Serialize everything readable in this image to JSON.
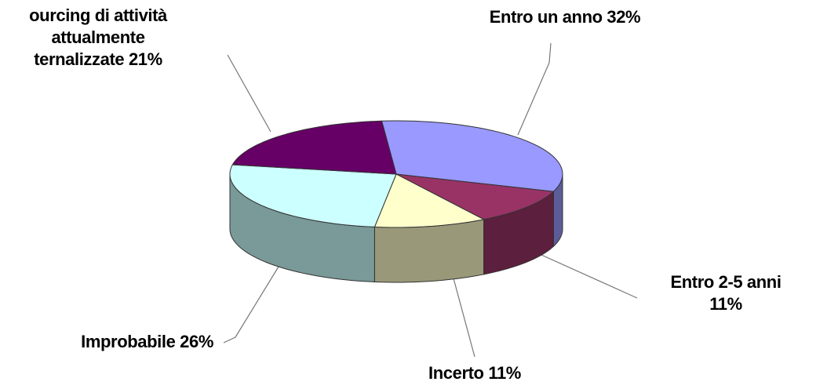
{
  "chart_data": {
    "type": "pie3d",
    "categories": [
      "Entro un anno",
      "Entro 2-5 anni",
      "Incerto",
      "Improbabile",
      "ourcing di attività\nattualmente\nternalizzate"
    ],
    "values": [
      32,
      11,
      11,
      26,
      21
    ],
    "value_labels": [
      "32%",
      "11%",
      "11%",
      "26%",
      "21%"
    ],
    "colors": [
      "#9999ff",
      "#993366",
      "#ffffcc",
      "#ccffff",
      "#660066"
    ]
  }
}
